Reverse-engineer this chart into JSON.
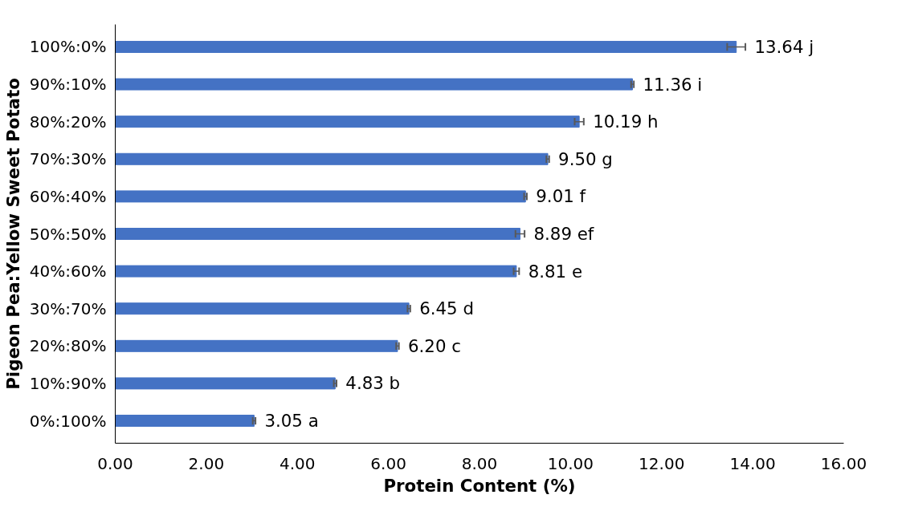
{
  "chart_data": {
    "type": "bar",
    "orientation": "horizontal",
    "xlabel": "Protein Content (%)",
    "ylabel": "Pigeon Pea:Yellow Sweet Potato",
    "categories": [
      "100%:0%",
      "90%:10%",
      "80%:20%",
      "70%:30%",
      "60%:40%",
      "50%:50%",
      "40%:60%",
      "30%:70%",
      "20%:80%",
      "10%:90%",
      "0%:100%"
    ],
    "values": [
      13.64,
      11.36,
      10.19,
      9.5,
      9.01,
      8.89,
      8.81,
      6.45,
      6.2,
      4.83,
      3.05
    ],
    "errors": [
      0.2,
      0.03,
      0.1,
      0.03,
      0.03,
      0.1,
      0.06,
      0.03,
      0.03,
      0.03,
      0.03
    ],
    "value_labels": [
      "13.64 j",
      "11.36 i",
      "10.19 h",
      "9.50 g",
      "9.01 f",
      "8.89 ef",
      "8.81 e",
      "6.45 d",
      "6.20 c",
      "4.83 b",
      "3.05 a"
    ],
    "color": "#4472c4",
    "xlim": [
      0,
      16
    ],
    "xticks": [
      {
        "value": 0,
        "label": "0.00"
      },
      {
        "value": 2,
        "label": "2.00"
      },
      {
        "value": 4,
        "label": "4.00"
      },
      {
        "value": 6,
        "label": "6.00"
      },
      {
        "value": 8,
        "label": "8.00"
      },
      {
        "value": 10,
        "label": "10.00"
      },
      {
        "value": 12,
        "label": "12.00"
      },
      {
        "value": 14,
        "label": "14.00"
      },
      {
        "value": 16,
        "label": "16.00"
      }
    ],
    "grid": false
  }
}
